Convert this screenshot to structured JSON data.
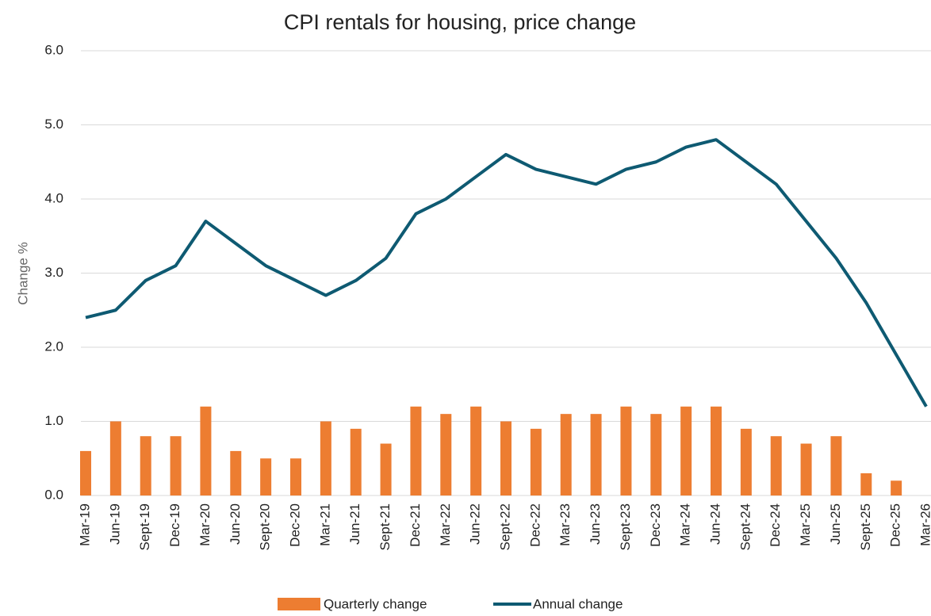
{
  "chart_data": {
    "type": "bar_line",
    "title": "CPI rentals for housing, price change",
    "y_label": "Change %",
    "categories": [
      "Mar-19",
      "Jun-19",
      "Sept-19",
      "Dec-19",
      "Mar-20",
      "Jun-20",
      "Sept-20",
      "Dec-20",
      "Mar-21",
      "Jun-21",
      "Sept-21",
      "Dec-21",
      "Mar-22",
      "Jun-22",
      "Sept-22",
      "Dec-22",
      "Mar-23",
      "Jun-23",
      "Sept-23",
      "Dec-23",
      "Mar-24",
      "Jun-24",
      "Sept-24",
      "Dec-24",
      "Mar-25",
      "Jun-25",
      "Sept-25",
      "Dec-25",
      "Mar-26"
    ],
    "series": [
      {
        "name": "Quarterly change",
        "type": "bar",
        "color": "#ed7d31",
        "values": [
          0.6,
          1.0,
          0.8,
          0.8,
          1.2,
          0.6,
          0.5,
          0.5,
          1.0,
          0.9,
          0.7,
          1.2,
          1.1,
          1.2,
          1.0,
          0.9,
          1.1,
          1.1,
          1.2,
          1.1,
          1.2,
          1.2,
          0.9,
          0.8,
          0.7,
          0.8,
          0.3,
          0.2,
          null
        ]
      },
      {
        "name": "Annual change",
        "type": "line",
        "color": "#0e5a72",
        "values": [
          2.4,
          2.5,
          2.9,
          3.1,
          3.7,
          3.4,
          3.1,
          2.9,
          2.7,
          2.9,
          3.2,
          3.8,
          4.0,
          4.3,
          4.6,
          4.4,
          4.3,
          4.2,
          4.4,
          4.5,
          4.7,
          4.8,
          4.5,
          4.2,
          3.7,
          3.2,
          2.6,
          1.9,
          1.2
        ]
      }
    ],
    "ylim": [
      0,
      6
    ],
    "yticks": [
      {
        "value": 0,
        "label": "0.0"
      },
      {
        "value": 1,
        "label": "1.0"
      },
      {
        "value": 2,
        "label": "2.0"
      },
      {
        "value": 3,
        "label": "3.0"
      },
      {
        "value": 4,
        "label": "4.0"
      },
      {
        "value": 5,
        "label": "5.0"
      },
      {
        "value": 6,
        "label": "6.0"
      }
    ],
    "grid": true,
    "legend": "bottom"
  }
}
